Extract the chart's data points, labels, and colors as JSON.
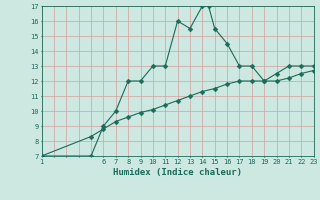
{
  "xlabel": "Humidex (Indice chaleur)",
  "bg_color": "#cce8e0",
  "grid_color_v": "#e8c0c0",
  "grid_color_h": "#e8c0c0",
  "line_color": "#1a6b5a",
  "xmin": 1,
  "xmax": 23,
  "ymin": 7,
  "ymax": 17,
  "curve_x": [
    1,
    5,
    6,
    7,
    8,
    9,
    10,
    11,
    12,
    13,
    14,
    14.5,
    15,
    16,
    17,
    18,
    19,
    20,
    21,
    22,
    23
  ],
  "curve_y": [
    7,
    7,
    9,
    10,
    12,
    12,
    13,
    13,
    16,
    15.5,
    17,
    17,
    15.5,
    14.5,
    13,
    13,
    12,
    12.5,
    13,
    13,
    13
  ],
  "diag_x": [
    1,
    5,
    6,
    7,
    8,
    9,
    10,
    11,
    12,
    13,
    14,
    15,
    16,
    17,
    18,
    19,
    20,
    21,
    22,
    23
  ],
  "diag_y": [
    7.0,
    8.3,
    8.8,
    9.3,
    9.6,
    9.9,
    10.1,
    10.4,
    10.7,
    11.0,
    11.3,
    11.5,
    11.8,
    12.0,
    12.0,
    12.0,
    12.0,
    12.2,
    12.5,
    12.7
  ],
  "xtick_labels": [
    "1",
    "",
    "",
    "",
    "",
    "6",
    "7",
    "8",
    "9",
    "10",
    "11",
    "12",
    "13",
    "14",
    "15",
    "16",
    "17",
    "18",
    "19",
    "20",
    "21",
    "22",
    "23"
  ],
  "ytick_positions": [
    7,
    8,
    9,
    10,
    11,
    12,
    13,
    14,
    15,
    16,
    17
  ],
  "marker_size": 2.5
}
